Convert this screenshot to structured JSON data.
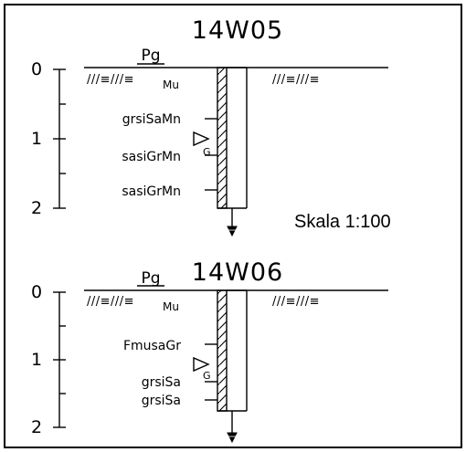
{
  "boreholes": [
    {
      "id": "14W05",
      "method": "Pg",
      "ground_symbol": "///≡///≡",
      "ground_symbol_right": "///≡///≡",
      "top_layer": "Mu",
      "depth_ticks": [
        "0",
        "1",
        "2"
      ],
      "layers": [
        "grsiSaMn",
        "sasiGrMn",
        "sasiGrMn"
      ],
      "groundwater_mark": "G"
    },
    {
      "id": "14W06",
      "method": "Pg",
      "ground_symbol": "///≡///≡",
      "ground_symbol_right": "///≡///≡",
      "top_layer": "Mu",
      "depth_ticks": [
        "0",
        "1",
        "2"
      ],
      "layers": [
        "FmusaGr",
        "grsiSa",
        "grsiSa"
      ],
      "groundwater_mark": "G"
    }
  ],
  "scale_label": "Skala 1:100"
}
